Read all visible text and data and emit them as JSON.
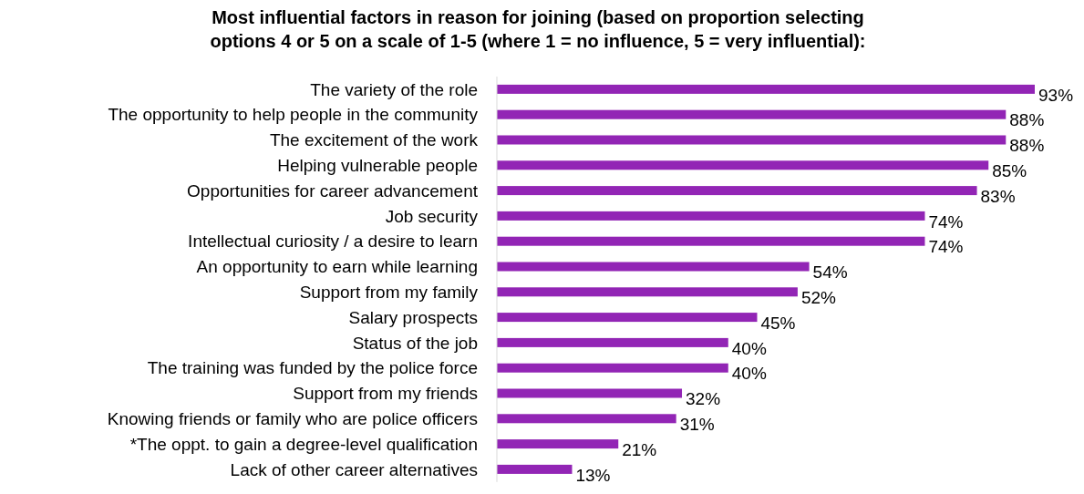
{
  "chart_data": {
    "type": "bar",
    "orientation": "horizontal",
    "title": "Most influential factors in reason for joining (based on proportion selecting\noptions 4 or 5 on a scale of 1-5 (where 1 = no influence, 5 = very influential):",
    "categories": [
      "The variety of the role",
      "The opportunity to help people in the community",
      "The excitement of the work",
      "Helping vulnerable people",
      "Opportunities for career advancement",
      "Job security",
      "Intellectual curiosity / a desire to learn",
      "An opportunity to earn while learning",
      "Support from my family",
      "Salary prospects",
      "Status of the job",
      "The training was funded by the police force",
      "Support from my friends",
      "Knowing friends or family who are police officers",
      "*The oppt. to gain a degree-level qualification",
      "Lack of other career alternatives"
    ],
    "values": [
      93,
      88,
      88,
      85,
      83,
      74,
      74,
      54,
      52,
      45,
      40,
      40,
      32,
      31,
      21,
      13
    ],
    "value_labels": [
      "93%",
      "88%",
      "88%",
      "85%",
      "83%",
      "74%",
      "74%",
      "54%",
      "52%",
      "45%",
      "40%",
      "40%",
      "32%",
      "31%",
      "21%",
      "13%"
    ],
    "color": "#9225b5"
  }
}
